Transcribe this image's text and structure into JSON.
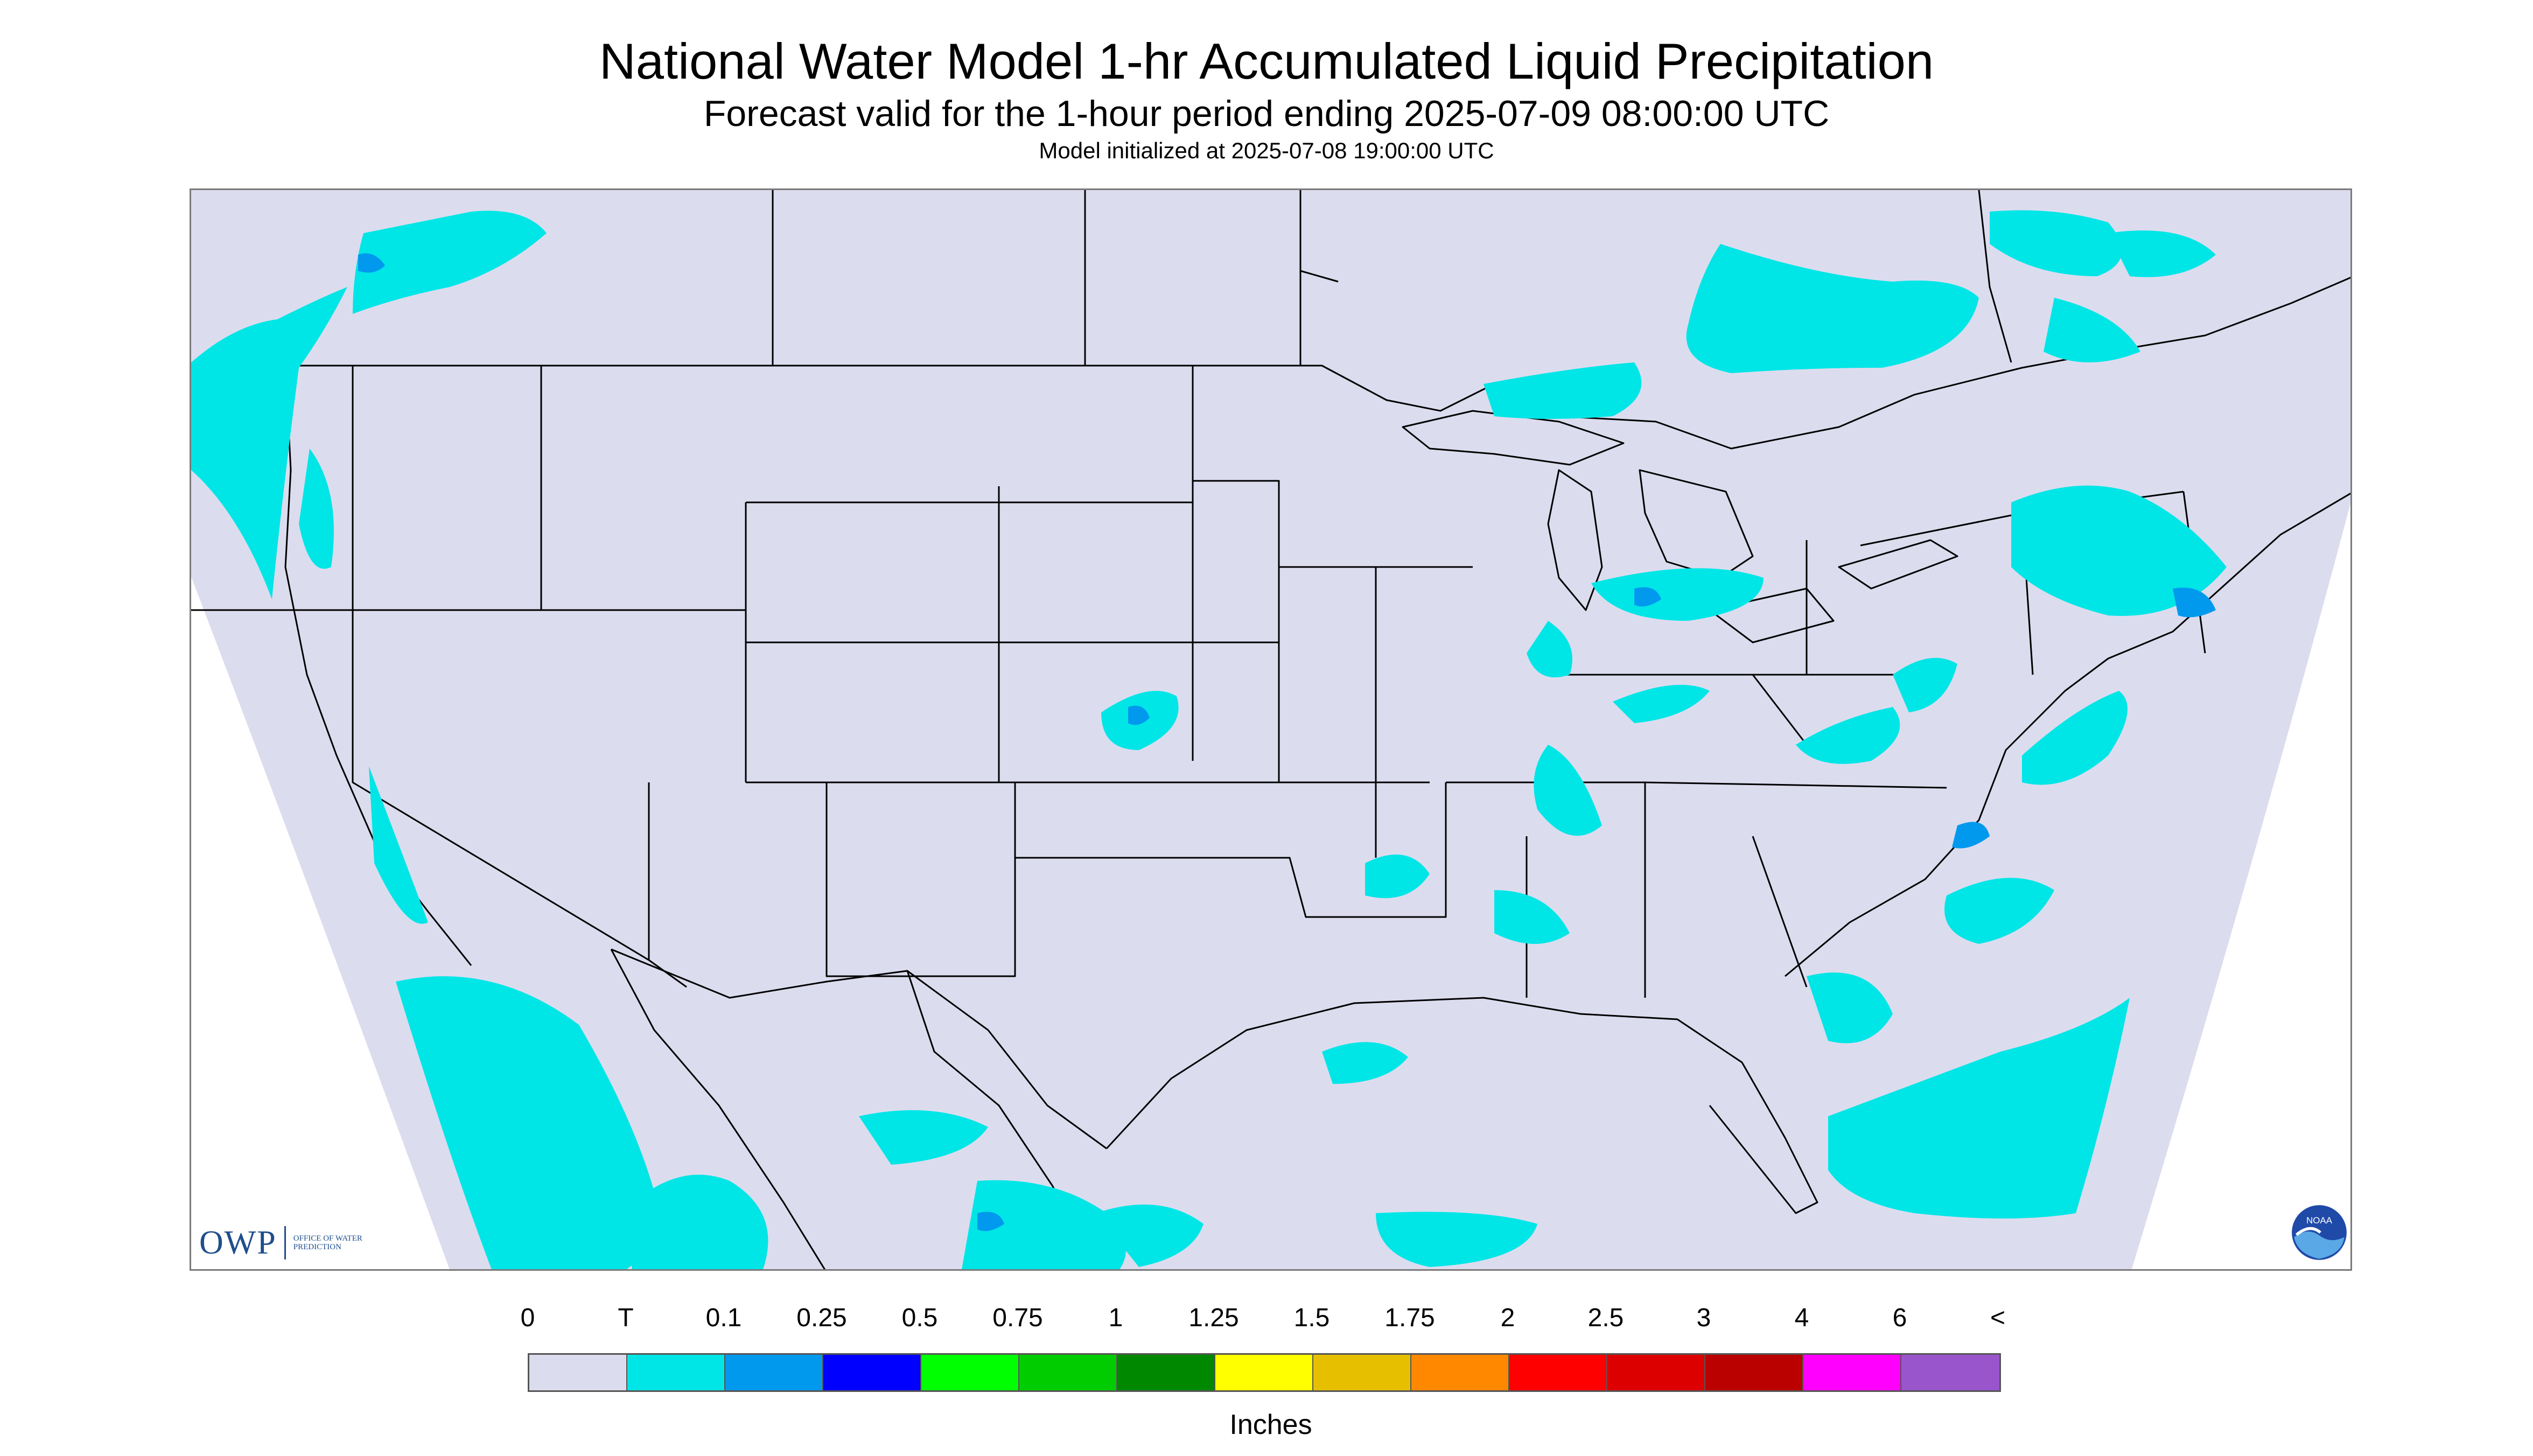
{
  "header": {
    "title": "National Water Model 1-hr Accumulated Liquid Precipitation",
    "subtitle": "Forecast valid for the 1-hour period ending 2025-07-09 08:00:00 UTC",
    "init_line": "Model initialized at 2025-07-08 19:00:00 UTC"
  },
  "map": {
    "region": "CONUS",
    "projection_edge_color": "#ffffff",
    "background_color": "#dcdcef",
    "boundary_color": "#000000",
    "precip_features": [
      {
        "region": "Pacific Northwest coast",
        "category": "T",
        "intensity": "0.1 in spots"
      },
      {
        "region": "Pacific offshore southwest",
        "category": "T"
      },
      {
        "region": "Southern Canada / Great Lakes",
        "category": "T"
      },
      {
        "region": "Kansas",
        "category": "T",
        "intensity": "0.1 in spots"
      },
      {
        "region": "Mid-Mississippi / Ohio Valley",
        "category": "T"
      },
      {
        "region": "Michigan",
        "category": "T",
        "intensity": "0.1 in spots"
      },
      {
        "region": "New England",
        "category": "T",
        "intensity": "0.1-0.25 in spots"
      },
      {
        "region": "Atlantic offshore",
        "category": "T",
        "intensity": "0.1 in spots"
      },
      {
        "region": "Northern Mexico",
        "category": "T",
        "intensity": "0.1 in spots"
      },
      {
        "region": "Florida",
        "category": "T"
      }
    ],
    "logos": {
      "owp_mark": "OWP",
      "owp_text": "OFFICE OF WATER PREDICTION",
      "noaa_text": "NOAA"
    }
  },
  "legend": {
    "labels": [
      "0",
      "T",
      "0.1",
      "0.25",
      "0.5",
      "0.75",
      "1",
      "1.25",
      "1.5",
      "1.75",
      "2",
      "2.5",
      "3",
      "4",
      "6",
      "<"
    ],
    "colors": [
      "#dcdcef",
      "#00e6e6",
      "#0099ee",
      "#0000ff",
      "#00ff00",
      "#00cc00",
      "#008800",
      "#ffff00",
      "#e6c000",
      "#ff8800",
      "#ff0000",
      "#dd0000",
      "#bb0000",
      "#ff00ff",
      "#9955cc"
    ],
    "units": "Inches"
  }
}
